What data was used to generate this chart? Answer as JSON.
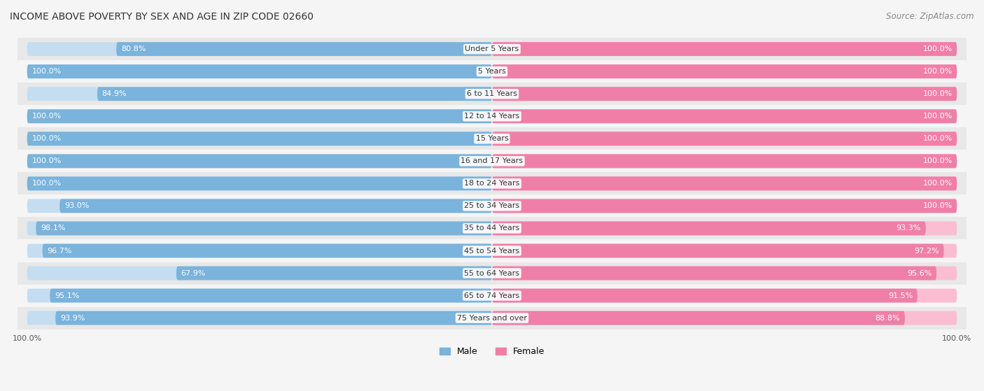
{
  "title": "INCOME ABOVE POVERTY BY SEX AND AGE IN ZIP CODE 02660",
  "source": "Source: ZipAtlas.com",
  "categories": [
    "Under 5 Years",
    "5 Years",
    "6 to 11 Years",
    "12 to 14 Years",
    "15 Years",
    "16 and 17 Years",
    "18 to 24 Years",
    "25 to 34 Years",
    "35 to 44 Years",
    "45 to 54 Years",
    "55 to 64 Years",
    "65 to 74 Years",
    "75 Years and over"
  ],
  "male": [
    80.8,
    100.0,
    84.9,
    100.0,
    100.0,
    100.0,
    100.0,
    93.0,
    98.1,
    96.7,
    67.9,
    95.1,
    93.9
  ],
  "female": [
    100.0,
    100.0,
    100.0,
    100.0,
    100.0,
    100.0,
    100.0,
    100.0,
    93.3,
    97.2,
    95.6,
    91.5,
    88.8
  ],
  "male_color": "#7ab3db",
  "female_color": "#f07fa8",
  "male_color_light": "#c5ddf0",
  "female_color_light": "#fbbdd1",
  "male_label": "Male",
  "female_label": "Female",
  "background_color": "#f5f5f5",
  "row_bg_color": "#e8e8e8",
  "title_fontsize": 10,
  "source_fontsize": 8.5,
  "label_fontsize": 8,
  "category_fontsize": 8
}
